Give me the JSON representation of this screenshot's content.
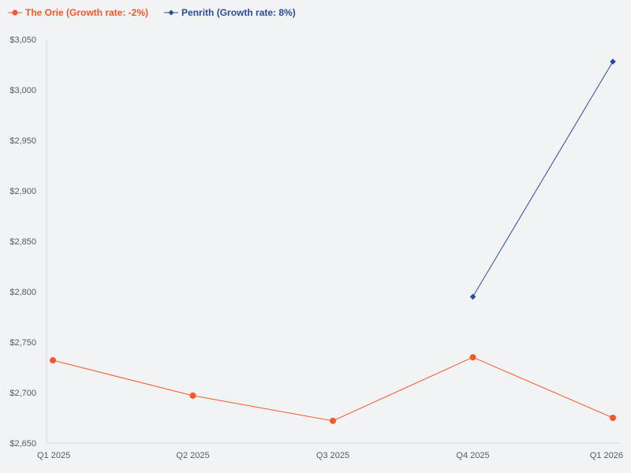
{
  "chart_data": {
    "type": "line",
    "title": "",
    "xlabel": "",
    "ylabel": "",
    "categories": [
      "Q1 2025",
      "Q2 2025",
      "Q3 2025",
      "Q4 2025",
      "Q1 2026"
    ],
    "ylim": [
      2650,
      3050
    ],
    "yticks": [
      2650,
      2700,
      2750,
      2800,
      2850,
      2900,
      2950,
      3000,
      3050
    ],
    "ytick_labels": [
      "$2,650",
      "$2,700",
      "$2,750",
      "$2,800",
      "$2,850",
      "$2,900",
      "$2,950",
      "$3,000",
      "$3,050"
    ],
    "grid": false,
    "legend_position": "top-left",
    "series": [
      {
        "name": "The Orie (Growth rate: -2%)",
        "color": "#f4582a",
        "marker": "circle",
        "values": [
          2732,
          2697,
          2672,
          2735,
          2675
        ]
      },
      {
        "name": "Penrith (Growth rate: 8%)",
        "color": "#2a4d96",
        "marker": "diamond",
        "values": [
          null,
          null,
          null,
          2795,
          3028
        ]
      }
    ]
  }
}
